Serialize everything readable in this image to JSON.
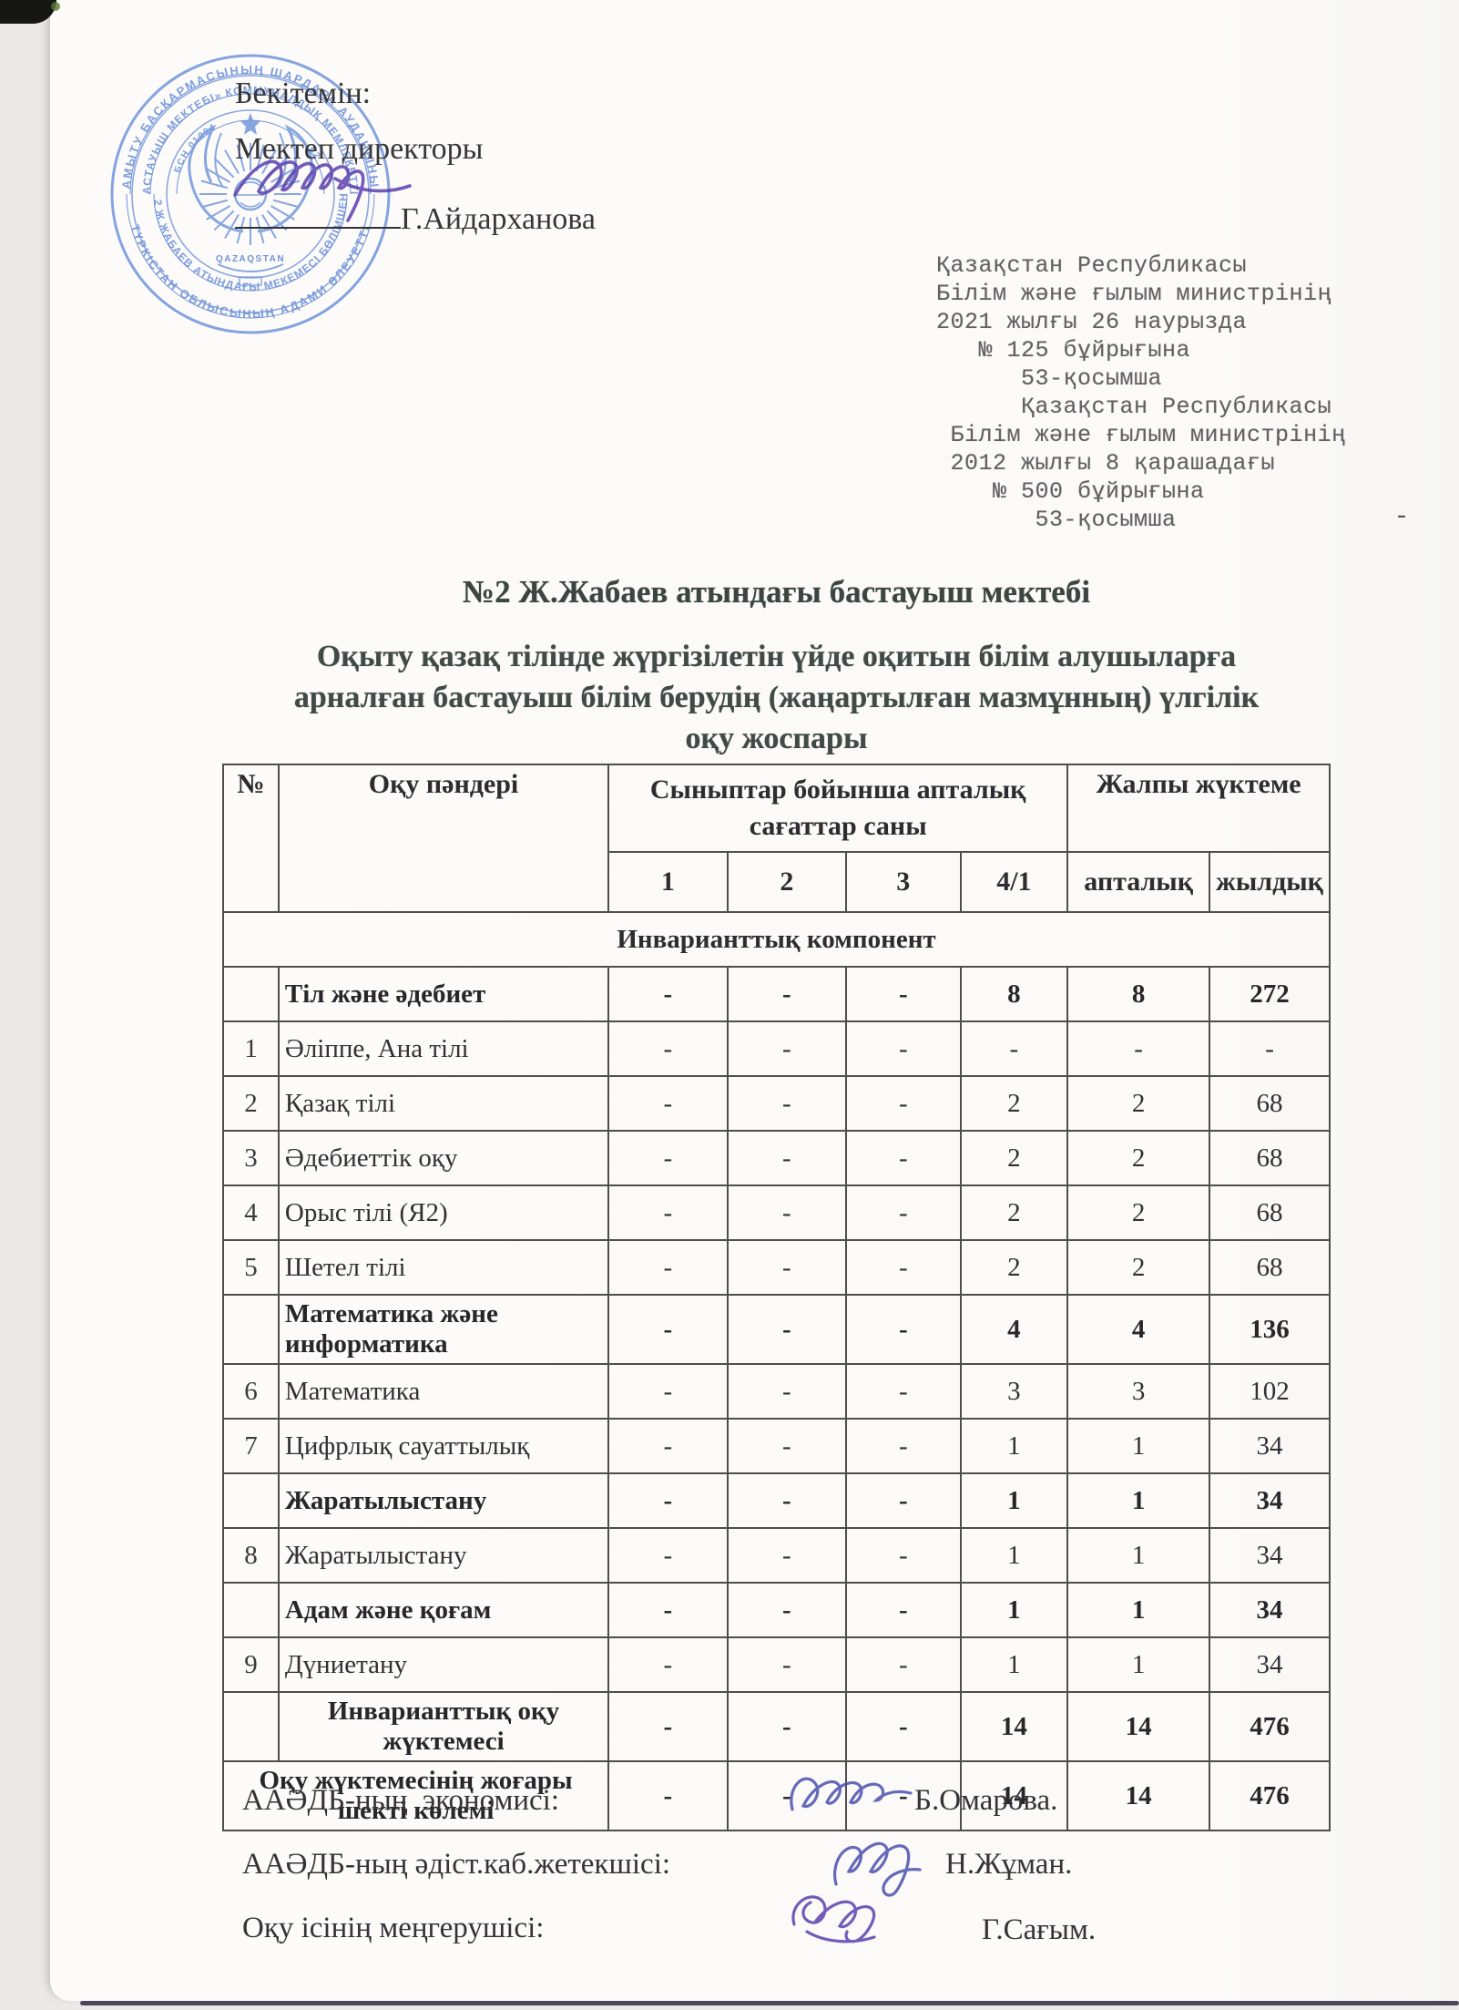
{
  "page": {
    "approval": {
      "line1": "Бекітемін:",
      "line2": "Мектеп директоры",
      "name": "Г.Айдарханова"
    },
    "order_block": "Қазақстан Республикасы\nБілім және ғылым министрінің\n2021 жылғы 26 наурызда\n   № 125 бұйрығына\n      53-қосымша\n      Қазақстан Республикасы\n Білім және ғылым министрінің\n 2012 жылғы 8 қарашадағы\n    № 500 бұйрығына\n       53-қосымша",
    "artifact_dash": "-",
    "title": "№2 Ж.Жабаев атындағы бастауыш мектебі",
    "subtitle": "Оқыту қазақ тілінде жүргізілетін үйде оқитын білім алушыларға\nарналған бастауыш білім берудің (жаңартылған мазмұнның) үлгілік\nоқу жоспары"
  },
  "stamp": {
    "outer_top": "ДАМЫТУ БАСҚАРМАСЫНЫҢ ШАРДАРА АУДАНЫНЫҢ",
    "outer_bottom": "ТҮРКІСТАН ОБЛЫСЫНЫҢ АДАМИ ӘЛЕУЕТТІ",
    "inner_top": "БАСТАУЫШ МЕКТЕБІ» КОММУНАЛДЫҚ МЕМЛЕКЕТТІК",
    "inner_bottom": "«№2 Ж.ЖАБАЕВ АТЫНДАҒЫ МЕКЕМЕСІ БӨЛІМШЕНІҢ",
    "bin": "БСН 01094",
    "bin2": "62",
    "banner": "QAZAQSTAN",
    "color": "#5d85d5"
  },
  "table": {
    "headers": {
      "num": "№",
      "subject": "Оқу пәндері",
      "hours_group": "Сыныптар бойынша апталық сағаттар саны",
      "total_group": "Жалпы жүктеме",
      "cols": [
        "1",
        "2",
        "3",
        "4/1",
        "апталық",
        "жылдық"
      ]
    },
    "section": "Инварианттық компонент",
    "rows": [
      {
        "num": "",
        "subject": "Тіл және әдебиет",
        "bold": true,
        "values": [
          "-",
          "-",
          "-",
          "8",
          "8",
          "272"
        ]
      },
      {
        "num": "1",
        "subject": "Әліппе, Ана тілі",
        "values": [
          "-",
          "-",
          "-",
          "-",
          "-",
          "-"
        ]
      },
      {
        "num": "2",
        "subject": "Қазақ тілі",
        "values": [
          "-",
          "-",
          "-",
          "2",
          "2",
          "68"
        ]
      },
      {
        "num": "3",
        "subject": "Әдебиеттік оқу",
        "values": [
          "-",
          "-",
          "-",
          "2",
          "2",
          "68"
        ]
      },
      {
        "num": "4",
        "subject": "Орыс тілі (Я2)",
        "values": [
          "-",
          "-",
          "-",
          "2",
          "2",
          "68"
        ]
      },
      {
        "num": "5",
        "subject": "Шетел тілі",
        "values": [
          "-",
          "-",
          "-",
          "2",
          "2",
          "68"
        ]
      },
      {
        "num": "",
        "subject": "Математика және информатика",
        "bold": true,
        "values": [
          "-",
          "-",
          "-",
          "4",
          "4",
          "136"
        ]
      },
      {
        "num": "6",
        "subject": "Математика",
        "values": [
          "-",
          "-",
          "-",
          "3",
          "3",
          "102"
        ]
      },
      {
        "num": "7",
        "subject": "Цифрлық сауаттылық",
        "values": [
          "-",
          "-",
          "-",
          "1",
          "1",
          "34"
        ]
      },
      {
        "num": "",
        "subject": "Жаратылыстану",
        "bold": true,
        "values": [
          "-",
          "-",
          "-",
          "1",
          "1",
          "34"
        ]
      },
      {
        "num": "8",
        "subject": "Жаратылыстану",
        "values": [
          "-",
          "-",
          "-",
          "1",
          "1",
          "34"
        ]
      },
      {
        "num": "",
        "subject": "Адам және қоғам",
        "bold": true,
        "values": [
          "-",
          "-",
          "-",
          "1",
          "1",
          "34"
        ]
      },
      {
        "num": "9",
        "subject": "Дүниетану",
        "values": [
          "-",
          "-",
          "-",
          "1",
          "1",
          "34"
        ]
      },
      {
        "num": "",
        "subject": "Инварианттық оқу жүктемесі",
        "bold": true,
        "center": true,
        "values": [
          "-",
          "-",
          "-",
          "14",
          "14",
          "476"
        ]
      },
      {
        "subject": "Оқу жүктемесінің жоғары шекті көлемі",
        "bold": true,
        "center": true,
        "span": true,
        "values": [
          "-",
          "-",
          "-",
          "14",
          "14",
          "476"
        ]
      }
    ]
  },
  "signers": [
    {
      "label": "ААӘДБ-ның  экономисі:",
      "name": "Б.Омарова."
    },
    {
      "label": "ААӘДБ-ның әдіст.каб.жетекшісі:",
      "name": "Н.Жұман."
    },
    {
      "label": "Оқу ісінің меңгерушісі:",
      "name": "Г.Сағым."
    }
  ]
}
